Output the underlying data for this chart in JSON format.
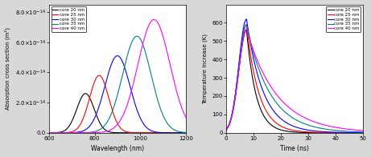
{
  "legend_labels": [
    "core 20 nm",
    "core 25 nm",
    "core 30 nm",
    "core 35 nm",
    "core 40 nm"
  ],
  "colors": [
    "black",
    "red",
    "blue",
    "teal",
    "magenta"
  ],
  "abs_peaks_nm": [
    760,
    820,
    900,
    985,
    1060
  ],
  "abs_widths_nm": [
    38,
    42,
    55,
    62,
    70
  ],
  "abs_peak_values": [
    2.6e-14,
    3.8e-14,
    5.1e-14,
    6.4e-14,
    7.5e-14
  ],
  "abs_ylim": [
    0,
    8.5e-14
  ],
  "abs_ytick_labels": [
    "0.0",
    "2.0x10-14",
    "4.0x10-14",
    "6.0x10-14",
    "8.0x10-14"
  ],
  "abs_yticks": [
    0.0,
    2e-14,
    4e-14,
    6e-14,
    8e-14
  ],
  "abs_xlim": [
    600,
    1200
  ],
  "abs_xticks": [
    600,
    800,
    1000,
    1200
  ],
  "abs_xlabel": "Wavelength (nm)",
  "abs_ylabel": "Absorption cross section (m²)",
  "temp_peak_time": 7.5,
  "temp_peak_values": [
    560,
    590,
    620,
    590,
    565
  ],
  "temp_decay_taus": [
    3.5,
    4.5,
    6.0,
    8.5,
    11.0
  ],
  "temp_rise_tau": 2.8,
  "temp_xlim": [
    0,
    50
  ],
  "temp_xticks": [
    0,
    10,
    20,
    30,
    40,
    50
  ],
  "temp_ylim": [
    0,
    700
  ],
  "temp_yticks": [
    0,
    100,
    200,
    300,
    400,
    500,
    600
  ],
  "temp_xlabel": "Time (ns)",
  "temp_ylabel": "Temperature increase (K)",
  "bg_color": "#d8d8d8",
  "plot_bg": "#ffffff",
  "tick_fontsize": 5,
  "label_fontsize": 5.5,
  "legend_fontsize": 4,
  "linewidth": 0.8
}
